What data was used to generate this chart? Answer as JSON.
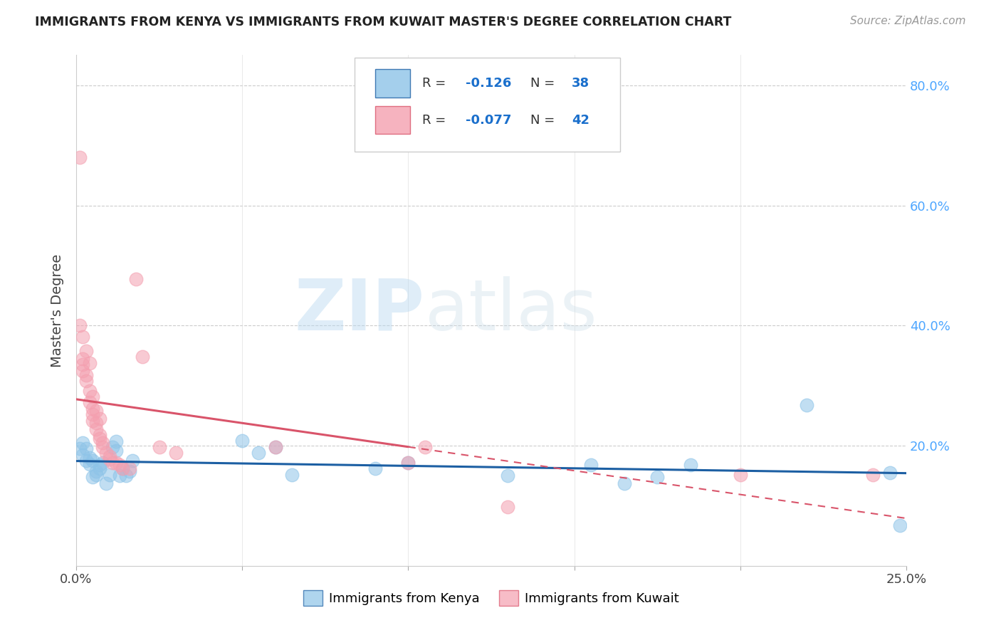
{
  "title": "IMMIGRANTS FROM KENYA VS IMMIGRANTS FROM KUWAIT MASTER'S DEGREE CORRELATION CHART",
  "source": "Source: ZipAtlas.com",
  "ylabel": "Master's Degree",
  "legend_kenya": "Immigrants from Kenya",
  "legend_kuwait": "Immigrants from Kuwait",
  "kenya_R": -0.126,
  "kenya_N": 38,
  "kuwait_R": -0.077,
  "kuwait_N": 42,
  "xlim": [
    0.0,
    0.25
  ],
  "ylim": [
    0.0,
    0.85
  ],
  "x_ticks": [
    0.0,
    0.05,
    0.1,
    0.15,
    0.2,
    0.25
  ],
  "y_ticks_right": [
    0.0,
    0.2,
    0.4,
    0.6,
    0.8
  ],
  "y_tick_labels_right": [
    "",
    "20.0%",
    "40.0%",
    "60.0%",
    "80.0%"
  ],
  "color_kenya": "#8ec4e8",
  "color_kuwait": "#f4a0b0",
  "color_kenya_line": "#1c5fa3",
  "color_kuwait_line": "#d9546a",
  "watermark_zip": "ZIP",
  "watermark_atlas": "atlas",
  "kenya_x": [
    0.001,
    0.002,
    0.002,
    0.003,
    0.003,
    0.004,
    0.004,
    0.005,
    0.005,
    0.006,
    0.006,
    0.007,
    0.007,
    0.008,
    0.009,
    0.01,
    0.011,
    0.012,
    0.012,
    0.013,
    0.014,
    0.015,
    0.016,
    0.017,
    0.05,
    0.055,
    0.06,
    0.065,
    0.09,
    0.1,
    0.13,
    0.155,
    0.165,
    0.175,
    0.185,
    0.22,
    0.245,
    0.248
  ],
  "kenya_y": [
    0.195,
    0.185,
    0.205,
    0.175,
    0.195,
    0.17,
    0.18,
    0.148,
    0.175,
    0.152,
    0.158,
    0.162,
    0.168,
    0.172,
    0.138,
    0.152,
    0.198,
    0.207,
    0.192,
    0.15,
    0.162,
    0.15,
    0.158,
    0.175,
    0.208,
    0.188,
    0.198,
    0.152,
    0.162,
    0.172,
    0.15,
    0.168,
    0.138,
    0.148,
    0.168,
    0.268,
    0.155,
    0.068
  ],
  "kuwait_x": [
    0.001,
    0.001,
    0.002,
    0.002,
    0.002,
    0.003,
    0.003,
    0.004,
    0.004,
    0.005,
    0.005,
    0.005,
    0.006,
    0.006,
    0.007,
    0.007,
    0.008,
    0.008,
    0.009,
    0.01,
    0.01,
    0.011,
    0.012,
    0.013,
    0.014,
    0.016,
    0.018,
    0.02,
    0.025,
    0.03,
    0.06,
    0.1,
    0.105,
    0.13,
    0.2,
    0.24,
    0.002,
    0.003,
    0.004,
    0.005,
    0.006,
    0.007
  ],
  "kuwait_y": [
    0.68,
    0.4,
    0.345,
    0.335,
    0.325,
    0.318,
    0.308,
    0.292,
    0.272,
    0.262,
    0.252,
    0.242,
    0.238,
    0.228,
    0.218,
    0.212,
    0.205,
    0.198,
    0.188,
    0.182,
    0.178,
    0.172,
    0.172,
    0.168,
    0.162,
    0.162,
    0.478,
    0.348,
    0.198,
    0.188,
    0.198,
    0.172,
    0.198,
    0.098,
    0.152,
    0.152,
    0.382,
    0.358,
    0.338,
    0.282,
    0.258,
    0.245
  ]
}
